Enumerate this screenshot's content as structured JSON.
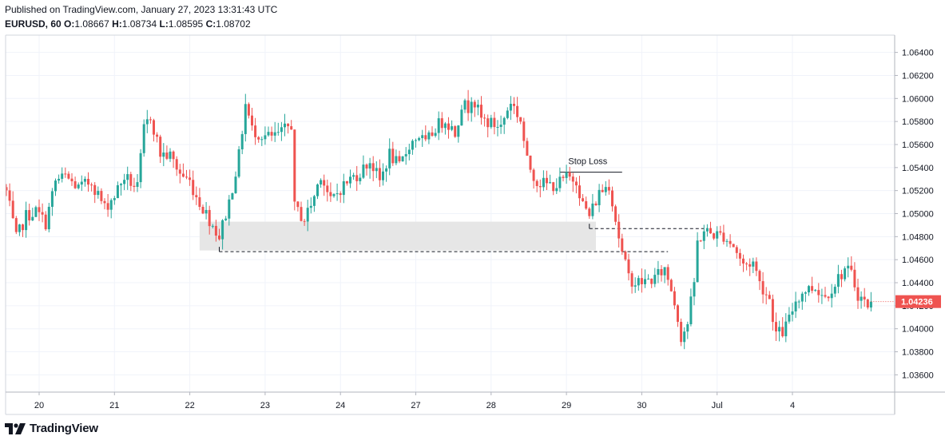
{
  "header": {
    "published": "Published on TradingView.com, January 27, 2023 13:31:43 UTC",
    "symbol": "EURUSD, 60",
    "o_label": "O:",
    "o_value": "1.08667",
    "h_label": "H:",
    "h_value": "1.08734",
    "l_label": "L:",
    "l_value": "1.08595",
    "c_label": "C:",
    "c_value": "1.08702"
  },
  "footer": {
    "brand": "TradingView",
    "logo_icon": "tradingview-logo-icon"
  },
  "colors": {
    "up": "#26a69a",
    "down": "#ef5350",
    "grid": "#f0f3fa",
    "zone": "#e6e6e6",
    "text": "#131722"
  },
  "chart_data": {
    "type": "candlestick",
    "timeframe": "60",
    "ylim": [
      1.0345,
      1.0655
    ],
    "y_ticks": [
      "1.06400",
      "1.06200",
      "1.06000",
      "1.05800",
      "1.05600",
      "1.05400",
      "1.05200",
      "1.05000",
      "1.04800",
      "1.04600",
      "1.04400",
      "1.04200",
      "1.04000",
      "1.03800",
      "1.03600"
    ],
    "x_ticks": [
      {
        "label": "20",
        "bar": 10
      },
      {
        "label": "21",
        "bar": 33
      },
      {
        "label": "22",
        "bar": 56
      },
      {
        "label": "23",
        "bar": 79
      },
      {
        "label": "24",
        "bar": 102
      },
      {
        "label": "27",
        "bar": 125
      },
      {
        "label": "28",
        "bar": 148
      },
      {
        "label": "29",
        "bar": 171
      },
      {
        "label": "30",
        "bar": 194
      },
      {
        "label": "Jul",
        "bar": 217
      },
      {
        "label": "4",
        "bar": 240
      }
    ],
    "last_price": "1.04236",
    "last_value": 1.04236,
    "annotations": {
      "stop_loss": {
        "text": "Stop Loss",
        "price": 1.0536,
        "bar_from": 169,
        "bar_to": 188
      },
      "demand_zone": {
        "top": 1.0493,
        "bottom": 1.0468,
        "bar_from": 59,
        "bar_to": 180
      },
      "level_upper": {
        "price": 1.0487,
        "bar_from": 178,
        "bar_to": 213
      },
      "level_lower": {
        "price": 1.0467,
        "bar_from": 65,
        "bar_to": 202
      }
    },
    "waypoints": [
      [
        0,
        1.0519
      ],
      [
        3,
        1.0478
      ],
      [
        6,
        1.0498
      ],
      [
        9,
        1.0502
      ],
      [
        12,
        1.0492
      ],
      [
        15,
        1.0528
      ],
      [
        18,
        1.0532
      ],
      [
        22,
        1.0522
      ],
      [
        26,
        1.0528
      ],
      [
        30,
        1.0505
      ],
      [
        33,
        1.0516
      ],
      [
        36,
        1.0532
      ],
      [
        40,
        1.0522
      ],
      [
        42,
        1.0573
      ],
      [
        44,
        1.0585
      ],
      [
        47,
        1.0552
      ],
      [
        50,
        1.055
      ],
      [
        53,
        1.0535
      ],
      [
        56,
        1.0528
      ],
      [
        58,
        1.0515
      ],
      [
        62,
        1.0495
      ],
      [
        65,
        1.048
      ],
      [
        68,
        1.051
      ],
      [
        71,
        1.055
      ],
      [
        73,
        1.0595
      ],
      [
        75,
        1.0573
      ],
      [
        78,
        1.0568
      ],
      [
        81,
        1.0566
      ],
      [
        84,
        1.057
      ],
      [
        87,
        1.0578
      ],
      [
        88,
        1.0505
      ],
      [
        91,
        1.0495
      ],
      [
        94,
        1.0515
      ],
      [
        96,
        1.0535
      ],
      [
        99,
        1.051
      ],
      [
        102,
        1.0522
      ],
      [
        105,
        1.053
      ],
      [
        108,
        1.0536
      ],
      [
        111,
        1.0546
      ],
      [
        114,
        1.0528
      ],
      [
        117,
        1.0552
      ],
      [
        120,
        1.054
      ],
      [
        123,
        1.056
      ],
      [
        126,
        1.0568
      ],
      [
        128,
        1.056
      ],
      [
        131,
        1.0575
      ],
      [
        134,
        1.0582
      ],
      [
        137,
        1.057
      ],
      [
        139,
        1.0595
      ],
      [
        141,
        1.0592
      ],
      [
        142,
        1.0603
      ],
      [
        145,
        1.0582
      ],
      [
        148,
        1.0578
      ],
      [
        151,
        1.0576
      ],
      [
        154,
        1.0598
      ],
      [
        157,
        1.0581
      ],
      [
        159,
        1.0545
      ],
      [
        162,
        1.0528
      ],
      [
        165,
        1.0525
      ],
      [
        168,
        1.0525
      ],
      [
        171,
        1.0531
      ],
      [
        174,
        1.053
      ],
      [
        176,
        1.0508
      ],
      [
        178,
        1.0498
      ],
      [
        181,
        1.0518
      ],
      [
        184,
        1.0526
      ],
      [
        186,
        1.0495
      ],
      [
        188,
        1.0465
      ],
      [
        190,
        1.0445
      ],
      [
        192,
        1.044
      ],
      [
        195,
        1.0441
      ],
      [
        198,
        1.0444
      ],
      [
        201,
        1.0452
      ],
      [
        203,
        1.0435
      ],
      [
        205,
        1.041
      ],
      [
        206,
        1.0393
      ],
      [
        208,
        1.0405
      ],
      [
        210,
        1.044
      ],
      [
        211,
        1.0475
      ],
      [
        213,
        1.0485
      ],
      [
        216,
        1.0482
      ],
      [
        219,
        1.0481
      ],
      [
        222,
        1.0472
      ],
      [
        225,
        1.0455
      ],
      [
        228,
        1.0458
      ],
      [
        230,
        1.044
      ],
      [
        233,
        1.0426
      ],
      [
        235,
        1.0396
      ],
      [
        237,
        1.0397
      ],
      [
        239,
        1.0408
      ],
      [
        241,
        1.0425
      ],
      [
        244,
        1.0434
      ],
      [
        247,
        1.0436
      ],
      [
        250,
        1.0428
      ],
      [
        253,
        1.044
      ],
      [
        256,
        1.0452
      ],
      [
        258,
        1.0447
      ],
      [
        260,
        1.043
      ],
      [
        262,
        1.0423
      ],
      [
        264,
        1.042
      ]
    ]
  }
}
